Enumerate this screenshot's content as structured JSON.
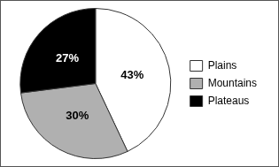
{
  "chart_data": {
    "type": "pie",
    "categories": [
      "Plains",
      "Mountains",
      "Plateaus"
    ],
    "values": [
      43,
      30,
      27
    ],
    "value_labels": [
      "43%",
      "30%",
      "27%"
    ],
    "colors": [
      "#ffffff",
      "#b0b0b0",
      "#000000"
    ],
    "data_labels": true,
    "legend": "right"
  }
}
